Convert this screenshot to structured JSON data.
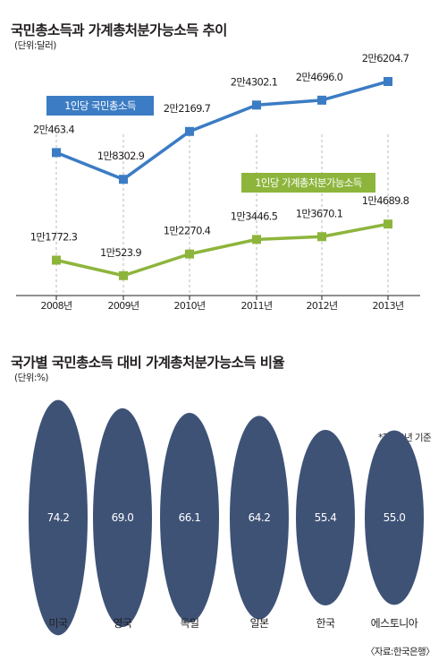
{
  "colors": {
    "gni_line": "#3b7cc4",
    "disposable_line": "#8db53c",
    "ellipse": "#3e5276",
    "grid": "#b9b9b9"
  },
  "chart_data": [
    {
      "type": "line",
      "title": "국민총소득과 가계총처분가능소득 추이",
      "unit_label": "(단위:달러)",
      "categories": [
        "2008년",
        "2009년",
        "2010년",
        "2011년",
        "2012년",
        "2013년"
      ],
      "series": [
        {
          "name": "1인당 국민총소득",
          "values": [
            20463.4,
            18302.9,
            22169.7,
            24302.1,
            24696.0,
            26204.7
          ],
          "labels": [
            "2만463.4",
            "1만8302.9",
            "2만2169.7",
            "2만4302.1",
            "2만4696.0",
            "2만6204.7"
          ]
        },
        {
          "name": "1인당 가계총처분가능소득",
          "values": [
            11772.3,
            10523.9,
            12270.4,
            13446.5,
            13670.1,
            14689.8
          ],
          "labels": [
            "1만1772.3",
            "1만523.9",
            "1만2270.4",
            "1만3446.5",
            "1만3670.1",
            "1만4689.8"
          ]
        }
      ],
      "grid": "vertical-dashed"
    },
    {
      "type": "bar",
      "title": "국가별 국민총소득 대비 가계총처분가능소득 비율",
      "unit_label": "(단위:%)",
      "note": "*2012년 기준",
      "categories": [
        "미국",
        "영국",
        "독일",
        "일본",
        "한국",
        "에스토니아"
      ],
      "values": [
        74.2,
        69.0,
        66.1,
        64.2,
        55.4,
        55.0
      ],
      "value_labels": [
        "74.2",
        "69.0",
        "66.1",
        "64.2",
        "55.4",
        "55.0"
      ],
      "source": "〈자료:한국은행〉"
    }
  ]
}
